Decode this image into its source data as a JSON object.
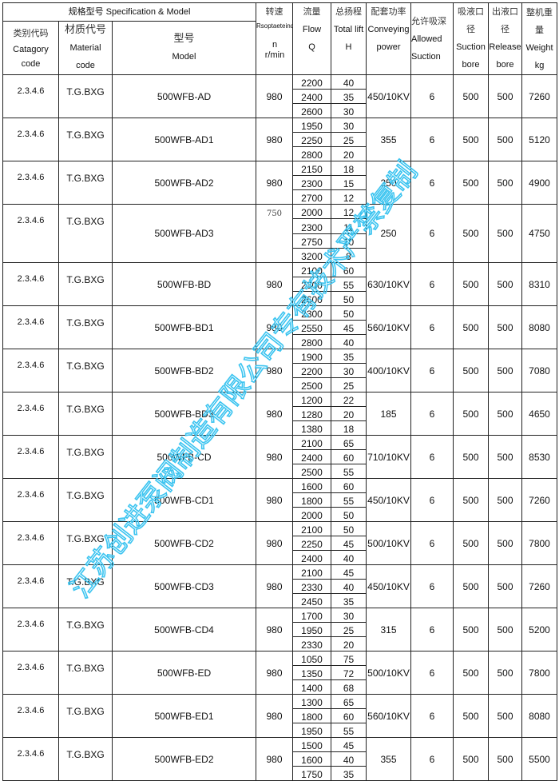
{
  "header": {
    "spec_model": "规格型号 Specification & Model",
    "category_cn": "类别代码",
    "category_en": "Catagory code",
    "material_cn": "材质代号",
    "material_en": "Material code",
    "model_cn": "型号",
    "model_en": "Model",
    "speed_cn": "转速",
    "speed_en": "Rsoptaeteindg",
    "speed_unit": "n r/min",
    "flow_cn": "流量",
    "flow_en": "Flow",
    "flow_sym": "Q",
    "lift_cn": "总扬程",
    "lift_en": "Total lift",
    "lift_sym": "H",
    "power_cn": "配套功率",
    "power_en": "Conveying power",
    "suction_cn": "允许吸深",
    "suction_en": "Allowed Suction",
    "sbore_cn": "吸液口径",
    "sbore_en": "Suction bore",
    "rbore_cn": "出液口径",
    "rbore_en": "Release bore",
    "weight_cn": "整机重量",
    "weight_en": "Weight kg"
  },
  "rows": [
    {
      "code": "2.3.4.6",
      "material": "T.G.BXG",
      "model": "500WFB-AD",
      "speed": "980",
      "flow": [
        "2200",
        "2400",
        "2600"
      ],
      "lift": [
        "40",
        "35",
        "30"
      ],
      "power": "450/10KV",
      "suction": "6",
      "sbore": "500",
      "rbore": "500",
      "weight": "7260"
    },
    {
      "code": "2.3.4.6",
      "material": "T.G.BXG",
      "model": "500WFB-AD1",
      "speed": "980",
      "flow": [
        "1950",
        "2250",
        "2800"
      ],
      "lift": [
        "30",
        "25",
        "20"
      ],
      "power": "355",
      "suction": "6",
      "sbore": "500",
      "rbore": "500",
      "weight": "5120"
    },
    {
      "code": "2.3.4.6",
      "material": "T.G.BXG",
      "model": "500WFB-AD2",
      "speed": "980",
      "flow": [
        "2150",
        "2300",
        "2700"
      ],
      "lift": [
        "18",
        "15",
        "12"
      ],
      "power": "250",
      "suction": "6",
      "sbore": "500",
      "rbore": "500",
      "weight": "4900"
    },
    {
      "code": "2.3.4.6",
      "material": "T.G.BXG",
      "model": "500WFB-AD3",
      "speed": "750",
      "flow": [
        "2000",
        "2300",
        "2750",
        "3200"
      ],
      "lift": [
        "12",
        "11",
        "10",
        "8"
      ],
      "power": "250",
      "suction": "6",
      "sbore": "500",
      "rbore": "500",
      "weight": "4750"
    },
    {
      "code": "2.3.4.6",
      "material": "T.G.BXG",
      "model": "500WFB-BD",
      "speed": "980",
      "flow": [
        "2100",
        "2300",
        "2600"
      ],
      "lift": [
        "60",
        "55",
        "50"
      ],
      "power": "630/10KV",
      "suction": "6",
      "sbore": "500",
      "rbore": "500",
      "weight": "8310"
    },
    {
      "code": "2.3.4.6",
      "material": "T.G.BXG",
      "model": "500WFB-BD1",
      "speed": "980",
      "flow": [
        "2300",
        "2550",
        "2800"
      ],
      "lift": [
        "50",
        "45",
        "40"
      ],
      "power": "560/10KV",
      "suction": "6",
      "sbore": "500",
      "rbore": "500",
      "weight": "8080"
    },
    {
      "code": "2.3.4.6",
      "material": "T.G.BXG",
      "model": "500WFB-BD2",
      "speed": "980",
      "flow": [
        "1900",
        "2200",
        "2500"
      ],
      "lift": [
        "35",
        "30",
        "25"
      ],
      "power": "400/10KV",
      "suction": "6",
      "sbore": "500",
      "rbore": "500",
      "weight": "7080"
    },
    {
      "code": "2.3.4.6",
      "material": "T.G.BXG",
      "model": "500WFB-BD3",
      "speed": "980",
      "flow": [
        "1200",
        "1280",
        "1380"
      ],
      "lift": [
        "22",
        "20",
        "18"
      ],
      "power": "185",
      "suction": "6",
      "sbore": "500",
      "rbore": "500",
      "weight": "4650"
    },
    {
      "code": "2.3.4.6",
      "material": "T.G.BXG",
      "model": "500WFB-CD",
      "speed": "980",
      "flow": [
        "2100",
        "2400",
        "2500"
      ],
      "lift": [
        "65",
        "60",
        "55"
      ],
      "power": "710/10KV",
      "suction": "6",
      "sbore": "500",
      "rbore": "500",
      "weight": "8530"
    },
    {
      "code": "2.3.4.6",
      "material": "T.G.BXG",
      "model": "500WFB-CD1",
      "speed": "980",
      "flow": [
        "1600",
        "1800",
        "2000"
      ],
      "lift": [
        "60",
        "55",
        "50"
      ],
      "power": "450/10KV",
      "suction": "6",
      "sbore": "500",
      "rbore": "500",
      "weight": "7260"
    },
    {
      "code": "2.3.4.6",
      "material": "T.G.BXG",
      "model": "500WFB-CD2",
      "speed": "980",
      "flow": [
        "2100",
        "2250",
        "2400"
      ],
      "lift": [
        "50",
        "45",
        "40"
      ],
      "power": "500/10KV",
      "suction": "6",
      "sbore": "500",
      "rbore": "500",
      "weight": "7800"
    },
    {
      "code": "2.3.4.6",
      "material": "T.G.BXG",
      "model": "500WFB-CD3",
      "speed": "980",
      "flow": [
        "2100",
        "2330",
        "2450"
      ],
      "lift": [
        "45",
        "40",
        "35"
      ],
      "power": "450/10KV",
      "suction": "6",
      "sbore": "500",
      "rbore": "500",
      "weight": "7260"
    },
    {
      "code": "2.3.4.6",
      "material": "T.G.BXG",
      "model": "500WFB-CD4",
      "speed": "980",
      "flow": [
        "1700",
        "1950",
        "2330"
      ],
      "lift": [
        "30",
        "25",
        "20"
      ],
      "power": "315",
      "suction": "6",
      "sbore": "500",
      "rbore": "500",
      "weight": "5200"
    },
    {
      "code": "2.3.4.6",
      "material": "T.G.BXG",
      "model": "500WFB-ED",
      "speed": "980",
      "flow": [
        "1050",
        "1350",
        "1400"
      ],
      "lift": [
        "75",
        "72",
        "68"
      ],
      "power": "500/10KV",
      "suction": "6",
      "sbore": "500",
      "rbore": "500",
      "weight": "7800"
    },
    {
      "code": "2.3.4.6",
      "material": "T.G.BXG",
      "model": "500WFB-ED1",
      "speed": "980",
      "flow": [
        "1300",
        "1800",
        "1950"
      ],
      "lift": [
        "65",
        "60",
        "55"
      ],
      "power": "560/10KV",
      "suction": "6",
      "sbore": "500",
      "rbore": "500",
      "weight": "8080"
    },
    {
      "code": "2.3.4.6",
      "material": "T.G.BXG",
      "model": "500WFB-ED2",
      "speed": "980",
      "flow": [
        "1500",
        "1600",
        "1750"
      ],
      "lift": [
        "45",
        "40",
        "35"
      ],
      "power": "355",
      "suction": "6",
      "sbore": "500",
      "rbore": "500",
      "weight": "5500"
    }
  ],
  "watermark": {
    "text": "江苏创进泵阀制造有限公司专有技术严禁复制",
    "color": "#3cc4f0"
  }
}
